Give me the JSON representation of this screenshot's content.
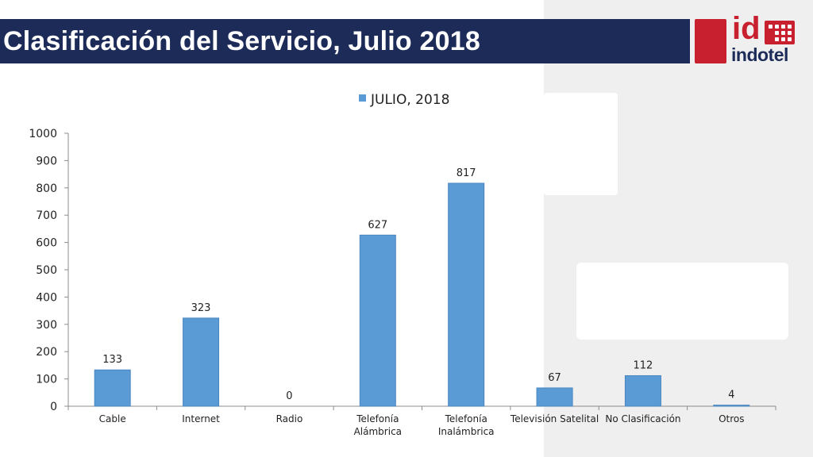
{
  "header": {
    "title": "Clasificación del Servicio, Julio 2018",
    "logo_mark": "id",
    "logo_text": "indotel",
    "title_bar_color": "#1c2b57",
    "brand_color": "#c8202f"
  },
  "chart_data": {
    "type": "bar",
    "title": "",
    "xlabel": "",
    "ylabel": "",
    "legend_position": "top",
    "grid": false,
    "ylim": [
      0,
      1000
    ],
    "yticks": [
      0,
      100,
      200,
      300,
      400,
      500,
      600,
      700,
      800,
      900,
      1000
    ],
    "categories": [
      [
        "Cable"
      ],
      [
        "Internet"
      ],
      [
        "Radio"
      ],
      [
        "Telefonía",
        "Alámbrica"
      ],
      [
        "Telefonía",
        "Inalámbrica"
      ],
      [
        "Televisión Satelital"
      ],
      [
        "No Clasificación"
      ],
      [
        "Otros"
      ]
    ],
    "series": [
      {
        "name": "JULIO, 2018",
        "color": "#5b9bd5",
        "values": [
          133,
          323,
          0,
          627,
          817,
          67,
          112,
          4
        ]
      }
    ]
  }
}
